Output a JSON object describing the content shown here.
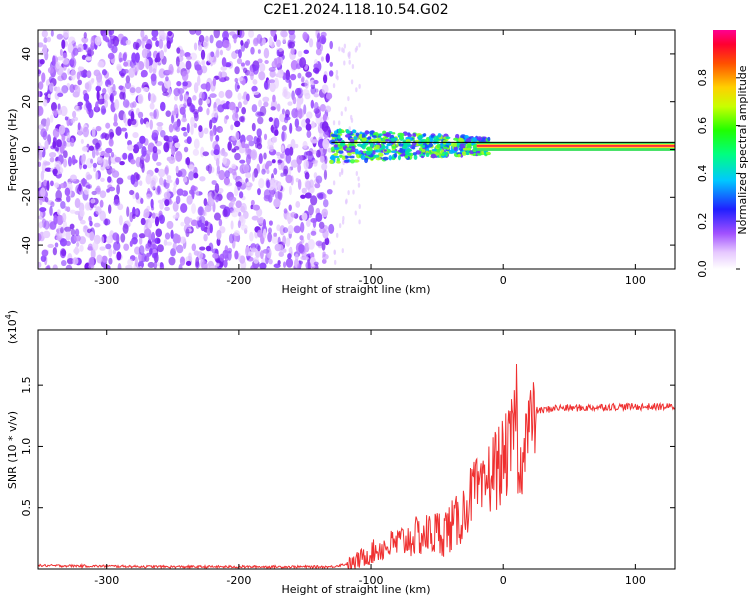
{
  "title": "C2E1.2024.118.10.54.G02",
  "chart_data": [
    {
      "type": "heatmap",
      "xlabel": "Height of straight line (km)",
      "ylabel": "Frequency (Hz)",
      "xlim": [
        -352,
        130
      ],
      "ylim": [
        -50,
        50
      ],
      "xticks": [
        -300,
        -200,
        -100,
        0,
        100
      ],
      "yticks": [
        -40,
        -20,
        0,
        20,
        40
      ],
      "colorbar": {
        "label": "Normalized spectral amplitude",
        "range": [
          0,
          1
        ],
        "ticks": [
          "0.0",
          "0.2",
          "0.4",
          "0.6",
          "0.8"
        ]
      },
      "regions": [
        {
          "x_range": [
            -352,
            -130
          ],
          "freq_range": [
            -50,
            50
          ],
          "amplitude": "low (0.1-0.3)",
          "pattern": "broadband noise"
        },
        {
          "x_range": [
            -130,
            -10
          ],
          "freq_range": [
            -5,
            5
          ],
          "amplitude": "0.3-0.6",
          "pattern": "narrow noisy band near 0 Hz"
        },
        {
          "x_range": [
            -20,
            130
          ],
          "freq_range": [
            0,
            2
          ],
          "amplitude": "0.8-1.0",
          "pattern": "narrow line near 1.5 Hz"
        }
      ],
      "reference_line_y": 3
    },
    {
      "type": "line",
      "xlabel": "Height of straight line (km)",
      "ylabel": "SNR (10 * v/v)",
      "y_multiplier": "(x10^4)",
      "xlim": [
        -352,
        130
      ],
      "ylim": [
        0,
        1.95
      ],
      "xticks": [
        -300,
        -200,
        -100,
        0,
        100
      ],
      "yticks": [
        0.5,
        1.0,
        1.5
      ],
      "ytick_labels": [
        "0.5",
        "1.0",
        "1.5"
      ],
      "series": [
        {
          "color": "#ef3030",
          "x": [
            -352,
            -300,
            -250,
            -200,
            -150,
            -130,
            -115,
            -105,
            -95,
            -85,
            -75,
            -65,
            -55,
            -45,
            -35,
            -28,
            -22,
            -16,
            -10,
            -5,
            0,
            5,
            8,
            10,
            12,
            15,
            20,
            25,
            30,
            40,
            60,
            80,
            100,
            115,
            130
          ],
          "y": [
            0.03,
            0.025,
            0.02,
            0.02,
            0.02,
            0.02,
            0.05,
            0.12,
            0.18,
            0.22,
            0.26,
            0.3,
            0.32,
            0.35,
            0.42,
            0.55,
            0.72,
            0.65,
            0.85,
            0.9,
            0.95,
            1.05,
            1.2,
            1.5,
            0.6,
            1.15,
            1.25,
            1.3,
            1.3,
            1.32,
            1.32,
            1.33,
            1.33,
            1.33,
            1.33
          ]
        }
      ]
    }
  ]
}
